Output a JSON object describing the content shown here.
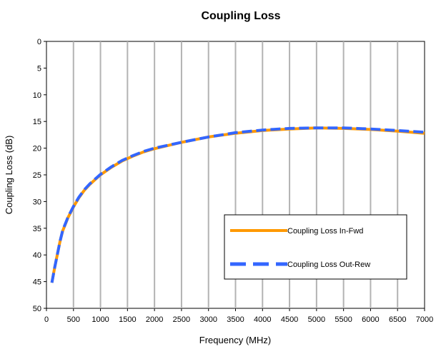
{
  "chart_data": {
    "type": "line",
    "title": "Coupling Loss",
    "xlabel": "Frequency (MHz)",
    "ylabel": "Coupling Loss (dB)",
    "xlim": [
      0,
      7000
    ],
    "ylim": [
      0,
      50
    ],
    "y_reversed": true,
    "x_ticks": [
      0,
      500,
      1000,
      1500,
      2000,
      2500,
      3000,
      3500,
      4000,
      4500,
      5000,
      5500,
      6000,
      6500,
      7000
    ],
    "y_ticks": [
      0,
      5,
      10,
      15,
      20,
      25,
      30,
      35,
      40,
      45,
      50
    ],
    "grid": "vertical",
    "legend_position": "lower-right",
    "series": [
      {
        "name": "Coupling Loss In-Fwd",
        "color": "#FF9900",
        "style": "solid",
        "x": [
          100,
          150,
          200,
          250,
          300,
          400,
          500,
          600,
          700,
          800,
          900,
          1000,
          1200,
          1400,
          1600,
          1800,
          2000,
          2500,
          3000,
          3500,
          4000,
          4500,
          5000,
          5500,
          6000,
          6500,
          7000
        ],
        "y": [
          45.2,
          42.5,
          40.0,
          37.5,
          35.5,
          33.0,
          31.0,
          29.3,
          27.9,
          26.8,
          25.9,
          25.0,
          23.6,
          22.4,
          21.5,
          20.7,
          20.1,
          18.9,
          17.9,
          17.2,
          16.7,
          16.4,
          16.2,
          16.3,
          16.5,
          16.8,
          17.2
        ]
      },
      {
        "name": "Coupling Loss Out-Rew",
        "color": "#3366FF",
        "style": "dashed",
        "x": [
          100,
          150,
          200,
          250,
          300,
          400,
          500,
          600,
          700,
          800,
          900,
          1000,
          1200,
          1400,
          1600,
          1800,
          2000,
          2500,
          3000,
          3500,
          4000,
          4500,
          5000,
          5500,
          6000,
          6500,
          7000
        ],
        "y": [
          45.2,
          42.5,
          40.0,
          37.5,
          35.4,
          32.9,
          30.9,
          29.2,
          27.8,
          26.7,
          25.8,
          24.9,
          23.5,
          22.3,
          21.4,
          20.6,
          20.0,
          18.9,
          17.9,
          17.1,
          16.6,
          16.3,
          16.2,
          16.2,
          16.4,
          16.7,
          17.0
        ]
      }
    ]
  }
}
